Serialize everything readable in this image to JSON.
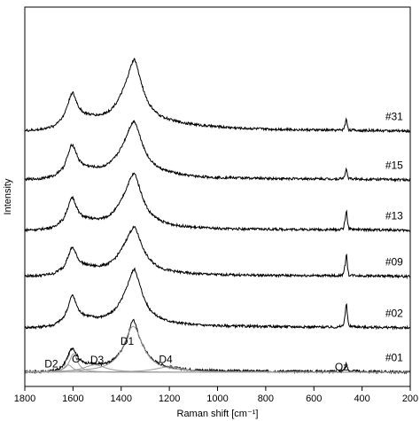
{
  "chart_data": {
    "type": "line",
    "xlabel": "Raman shift [cm⁻¹]",
    "ylabel": "Intensity",
    "xlim": [
      1800,
      200
    ],
    "x_reversed": true,
    "grid": false,
    "x_ticks": [
      1800,
      1600,
      1400,
      1200,
      1000,
      800,
      600,
      400,
      200
    ],
    "y_ticks": "none",
    "stacked_offset": true,
    "series": [
      {
        "name": "#01",
        "points": [
          [
            1800,
            0.02
          ],
          [
            1750,
            0.025
          ],
          [
            1700,
            0.04
          ],
          [
            1660,
            0.12
          ],
          [
            1640,
            0.28
          ],
          [
            1625,
            0.55
          ],
          [
            1610,
            0.9
          ],
          [
            1600,
            1.0
          ],
          [
            1590,
            0.8
          ],
          [
            1575,
            0.55
          ],
          [
            1560,
            0.42
          ],
          [
            1540,
            0.38
          ],
          [
            1520,
            0.35
          ],
          [
            1500,
            0.32
          ],
          [
            1480,
            0.33
          ],
          [
            1460,
            0.38
          ],
          [
            1440,
            0.46
          ],
          [
            1420,
            0.62
          ],
          [
            1400,
            0.88
          ],
          [
            1380,
            1.25
          ],
          [
            1365,
            1.7
          ],
          [
            1355,
            2.05
          ],
          [
            1350,
            2.15
          ],
          [
            1345,
            2.05
          ],
          [
            1335,
            1.75
          ],
          [
            1320,
            1.3
          ],
          [
            1300,
            0.9
          ],
          [
            1280,
            0.62
          ],
          [
            1260,
            0.45
          ],
          [
            1240,
            0.34
          ],
          [
            1220,
            0.27
          ],
          [
            1200,
            0.22
          ],
          [
            1170,
            0.17
          ],
          [
            1140,
            0.13
          ],
          [
            1100,
            0.1
          ],
          [
            1050,
            0.08
          ],
          [
            1000,
            0.06
          ],
          [
            900,
            0.05
          ],
          [
            800,
            0.045
          ],
          [
            700,
            0.04
          ],
          [
            600,
            0.035
          ],
          [
            500,
            0.03
          ],
          [
            480,
            0.06
          ],
          [
            470,
            0.2
          ],
          [
            465,
            0.42
          ],
          [
            462,
            0.2
          ],
          [
            455,
            0.05
          ],
          [
            400,
            0.03
          ],
          [
            300,
            0.02
          ],
          [
            200,
            0.0
          ]
        ]
      },
      {
        "name": "#02",
        "points": [
          [
            1800,
            0.02
          ],
          [
            1740,
            0.04
          ],
          [
            1680,
            0.12
          ],
          [
            1640,
            0.4
          ],
          [
            1620,
            0.85
          ],
          [
            1608,
            1.25
          ],
          [
            1600,
            1.33
          ],
          [
            1592,
            1.1
          ],
          [
            1575,
            0.7
          ],
          [
            1555,
            0.55
          ],
          [
            1530,
            0.48
          ],
          [
            1500,
            0.44
          ],
          [
            1480,
            0.46
          ],
          [
            1460,
            0.52
          ],
          [
            1440,
            0.62
          ],
          [
            1420,
            0.82
          ],
          [
            1400,
            1.12
          ],
          [
            1380,
            1.55
          ],
          [
            1365,
            1.98
          ],
          [
            1352,
            2.3
          ],
          [
            1345,
            2.38
          ],
          [
            1338,
            2.25
          ],
          [
            1325,
            1.8
          ],
          [
            1305,
            1.2
          ],
          [
            1285,
            0.8
          ],
          [
            1260,
            0.55
          ],
          [
            1240,
            0.42
          ],
          [
            1220,
            0.34
          ],
          [
            1200,
            0.28
          ],
          [
            1170,
            0.22
          ],
          [
            1140,
            0.18
          ],
          [
            1100,
            0.14
          ],
          [
            1050,
            0.11
          ],
          [
            1000,
            0.09
          ],
          [
            900,
            0.07
          ],
          [
            800,
            0.06
          ],
          [
            700,
            0.05
          ],
          [
            600,
            0.04
          ],
          [
            500,
            0.03
          ],
          [
            478,
            0.1
          ],
          [
            470,
            0.55
          ],
          [
            465,
            1.05
          ],
          [
            461,
            0.5
          ],
          [
            455,
            0.08
          ],
          [
            400,
            0.03
          ],
          [
            300,
            0.02
          ],
          [
            200,
            0.0
          ]
        ]
      },
      {
        "name": "#09",
        "points": [
          [
            1800,
            0.02
          ],
          [
            1740,
            0.04
          ],
          [
            1680,
            0.12
          ],
          [
            1640,
            0.38
          ],
          [
            1620,
            0.8
          ],
          [
            1608,
            1.12
          ],
          [
            1600,
            1.18
          ],
          [
            1592,
            1.0
          ],
          [
            1575,
            0.66
          ],
          [
            1555,
            0.52
          ],
          [
            1530,
            0.46
          ],
          [
            1500,
            0.43
          ],
          [
            1480,
            0.45
          ],
          [
            1460,
            0.5
          ],
          [
            1440,
            0.6
          ],
          [
            1420,
            0.8
          ],
          [
            1400,
            1.08
          ],
          [
            1380,
            1.45
          ],
          [
            1365,
            1.75
          ],
          [
            1352,
            1.95
          ],
          [
            1345,
            2.0
          ],
          [
            1338,
            1.9
          ],
          [
            1325,
            1.55
          ],
          [
            1305,
            1.05
          ],
          [
            1285,
            0.72
          ],
          [
            1260,
            0.5
          ],
          [
            1240,
            0.38
          ],
          [
            1220,
            0.3
          ],
          [
            1200,
            0.25
          ],
          [
            1170,
            0.2
          ],
          [
            1140,
            0.16
          ],
          [
            1100,
            0.12
          ],
          [
            1050,
            0.1
          ],
          [
            1000,
            0.08
          ],
          [
            900,
            0.06
          ],
          [
            800,
            0.05
          ],
          [
            700,
            0.045
          ],
          [
            600,
            0.04
          ],
          [
            500,
            0.03
          ],
          [
            478,
            0.08
          ],
          [
            470,
            0.5
          ],
          [
            465,
            0.98
          ],
          [
            461,
            0.45
          ],
          [
            455,
            0.06
          ],
          [
            400,
            0.03
          ],
          [
            300,
            0.02
          ],
          [
            200,
            0.0
          ]
        ]
      },
      {
        "name": "#13",
        "points": [
          [
            1800,
            0.02
          ],
          [
            1740,
            0.04
          ],
          [
            1680,
            0.14
          ],
          [
            1640,
            0.45
          ],
          [
            1620,
            0.95
          ],
          [
            1608,
            1.28
          ],
          [
            1600,
            1.33
          ],
          [
            1592,
            1.12
          ],
          [
            1575,
            0.72
          ],
          [
            1555,
            0.56
          ],
          [
            1530,
            0.5
          ],
          [
            1500,
            0.47
          ],
          [
            1480,
            0.49
          ],
          [
            1460,
            0.56
          ],
          [
            1440,
            0.68
          ],
          [
            1420,
            0.9
          ],
          [
            1400,
            1.22
          ],
          [
            1380,
            1.65
          ],
          [
            1365,
            2.02
          ],
          [
            1352,
            2.25
          ],
          [
            1345,
            2.3
          ],
          [
            1338,
            2.18
          ],
          [
            1325,
            1.75
          ],
          [
            1305,
            1.18
          ],
          [
            1285,
            0.78
          ],
          [
            1260,
            0.54
          ],
          [
            1240,
            0.42
          ],
          [
            1220,
            0.33
          ],
          [
            1200,
            0.27
          ],
          [
            1170,
            0.21
          ],
          [
            1140,
            0.17
          ],
          [
            1100,
            0.13
          ],
          [
            1050,
            0.1
          ],
          [
            1000,
            0.08
          ],
          [
            900,
            0.06
          ],
          [
            800,
            0.05
          ],
          [
            700,
            0.045
          ],
          [
            600,
            0.04
          ],
          [
            500,
            0.03
          ],
          [
            478,
            0.08
          ],
          [
            470,
            0.45
          ],
          [
            465,
            0.88
          ],
          [
            461,
            0.42
          ],
          [
            455,
            0.06
          ],
          [
            400,
            0.03
          ],
          [
            300,
            0.02
          ],
          [
            200,
            0.0
          ]
        ]
      },
      {
        "name": "#15",
        "points": [
          [
            1800,
            0.02
          ],
          [
            1740,
            0.05
          ],
          [
            1680,
            0.16
          ],
          [
            1640,
            0.5
          ],
          [
            1620,
            1.02
          ],
          [
            1608,
            1.38
          ],
          [
            1600,
            1.42
          ],
          [
            1592,
            1.22
          ],
          [
            1575,
            0.8
          ],
          [
            1555,
            0.62
          ],
          [
            1530,
            0.55
          ],
          [
            1500,
            0.52
          ],
          [
            1480,
            0.54
          ],
          [
            1460,
            0.62
          ],
          [
            1440,
            0.75
          ],
          [
            1420,
            0.98
          ],
          [
            1400,
            1.3
          ],
          [
            1380,
            1.72
          ],
          [
            1365,
            2.1
          ],
          [
            1352,
            2.32
          ],
          [
            1345,
            2.38
          ],
          [
            1338,
            2.25
          ],
          [
            1325,
            1.85
          ],
          [
            1305,
            1.28
          ],
          [
            1285,
            0.88
          ],
          [
            1260,
            0.62
          ],
          [
            1240,
            0.48
          ],
          [
            1220,
            0.4
          ],
          [
            1200,
            0.34
          ],
          [
            1180,
            0.3
          ],
          [
            1160,
            0.24
          ],
          [
            1140,
            0.2
          ],
          [
            1100,
            0.16
          ],
          [
            1050,
            0.12
          ],
          [
            1000,
            0.1
          ],
          [
            900,
            0.08
          ],
          [
            800,
            0.06
          ],
          [
            700,
            0.05
          ],
          [
            600,
            0.045
          ],
          [
            500,
            0.04
          ],
          [
            478,
            0.07
          ],
          [
            470,
            0.25
          ],
          [
            465,
            0.45
          ],
          [
            461,
            0.22
          ],
          [
            455,
            0.05
          ],
          [
            400,
            0.03
          ],
          [
            300,
            0.02
          ],
          [
            200,
            0.0
          ]
        ]
      },
      {
        "name": "#31",
        "points": [
          [
            1800,
            0.02
          ],
          [
            1740,
            0.06
          ],
          [
            1680,
            0.2
          ],
          [
            1640,
            0.6
          ],
          [
            1620,
            1.12
          ],
          [
            1608,
            1.5
          ],
          [
            1600,
            1.55
          ],
          [
            1592,
            1.35
          ],
          [
            1575,
            0.95
          ],
          [
            1555,
            0.75
          ],
          [
            1530,
            0.68
          ],
          [
            1500,
            0.66
          ],
          [
            1480,
            0.68
          ],
          [
            1460,
            0.76
          ],
          [
            1440,
            0.9
          ],
          [
            1420,
            1.15
          ],
          [
            1400,
            1.5
          ],
          [
            1380,
            1.98
          ],
          [
            1365,
            2.45
          ],
          [
            1352,
            2.82
          ],
          [
            1345,
            2.9
          ],
          [
            1338,
            2.75
          ],
          [
            1325,
            2.25
          ],
          [
            1305,
            1.58
          ],
          [
            1285,
            1.1
          ],
          [
            1260,
            0.8
          ],
          [
            1240,
            0.64
          ],
          [
            1220,
            0.55
          ],
          [
            1200,
            0.48
          ],
          [
            1170,
            0.4
          ],
          [
            1140,
            0.34
          ],
          [
            1100,
            0.28
          ],
          [
            1050,
            0.22
          ],
          [
            1000,
            0.18
          ],
          [
            900,
            0.12
          ],
          [
            800,
            0.09
          ],
          [
            700,
            0.07
          ],
          [
            600,
            0.05
          ],
          [
            500,
            0.04
          ],
          [
            478,
            0.07
          ],
          [
            470,
            0.28
          ],
          [
            465,
            0.52
          ],
          [
            461,
            0.25
          ],
          [
            455,
            0.05
          ],
          [
            400,
            0.03
          ],
          [
            300,
            0.02
          ],
          [
            200,
            0.0
          ]
        ]
      }
    ],
    "fit_components": {
      "spectrum": "#01",
      "components": [
        {
          "name": "D2",
          "center": 1620,
          "height": 0.3,
          "width": 22
        },
        {
          "name": "G",
          "center": 1598,
          "height": 0.75,
          "width": 20
        },
        {
          "name": "D3",
          "center": 1510,
          "height": 0.3,
          "width": 55
        },
        {
          "name": "D1",
          "center": 1350,
          "height": 1.85,
          "width": 48
        },
        {
          "name": "D4",
          "center": 1200,
          "height": 0.22,
          "width": 70
        }
      ]
    },
    "annotations": [
      {
        "text": "D2",
        "x": 1690,
        "y": 0.2
      },
      {
        "text": "G",
        "x": 1588,
        "y": 0.4
      },
      {
        "text": "D3",
        "x": 1500,
        "y": 0.35
      },
      {
        "text": "D1",
        "x": 1375,
        "y": 1.1
      },
      {
        "text": "D4",
        "x": 1215,
        "y": 0.37
      },
      {
        "text": "Qz",
        "x": 485,
        "y": 0.08
      }
    ]
  }
}
